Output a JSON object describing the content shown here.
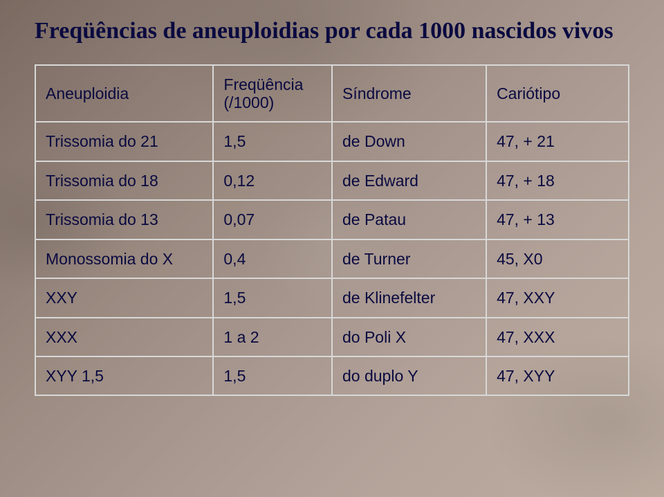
{
  "title": "Freqüências de aneuploidias por cada 1000 nascidos vivos",
  "table": {
    "headers": {
      "aneuploidia": "Aneuploidia",
      "frequencia": "Freqüência (/1000)",
      "sindrome": "Síndrome",
      "cariotipo": "Cariótipo"
    },
    "rows": [
      {
        "aneuploidia": "Trissomia do 21",
        "frequencia": "1,5",
        "sindrome": "de Down",
        "cariotipo": "47, + 21"
      },
      {
        "aneuploidia": "Trissomia do 18",
        "frequencia": "0,12",
        "sindrome": "de Edward",
        "cariotipo": "47, + 18"
      },
      {
        "aneuploidia": "Trissomia do 13",
        "frequencia": "0,07",
        "sindrome": "de Patau",
        "cariotipo": "47, + 13"
      },
      {
        "aneuploidia": "Monossomia do X",
        "frequencia": "0,4",
        "sindrome": "de Turner",
        "cariotipo": "45, X0"
      },
      {
        "aneuploidia": "XXY",
        "frequencia": "1,5",
        "sindrome": "de Klinefelter",
        "cariotipo": "47, XXY"
      },
      {
        "aneuploidia": "XXX",
        "frequencia": "1 a 2",
        "sindrome": "do Poli X",
        "cariotipo": "47, XXX"
      },
      {
        "aneuploidia": "XYY 1,5",
        "frequencia": "1,5",
        "sindrome": "do duplo Y",
        "cariotipo": "47, XYY"
      }
    ]
  },
  "style": {
    "title_color": "#0a0a40",
    "title_fontsize": 34,
    "cell_text_color": "#0a0a40",
    "cell_fontsize": 23,
    "border_color": "#d8d8d8",
    "border_width": 2,
    "background_gradient": [
      "#7a6a60",
      "#bcaca0"
    ],
    "column_widths_pct": [
      30,
      20,
      26,
      24
    ]
  }
}
